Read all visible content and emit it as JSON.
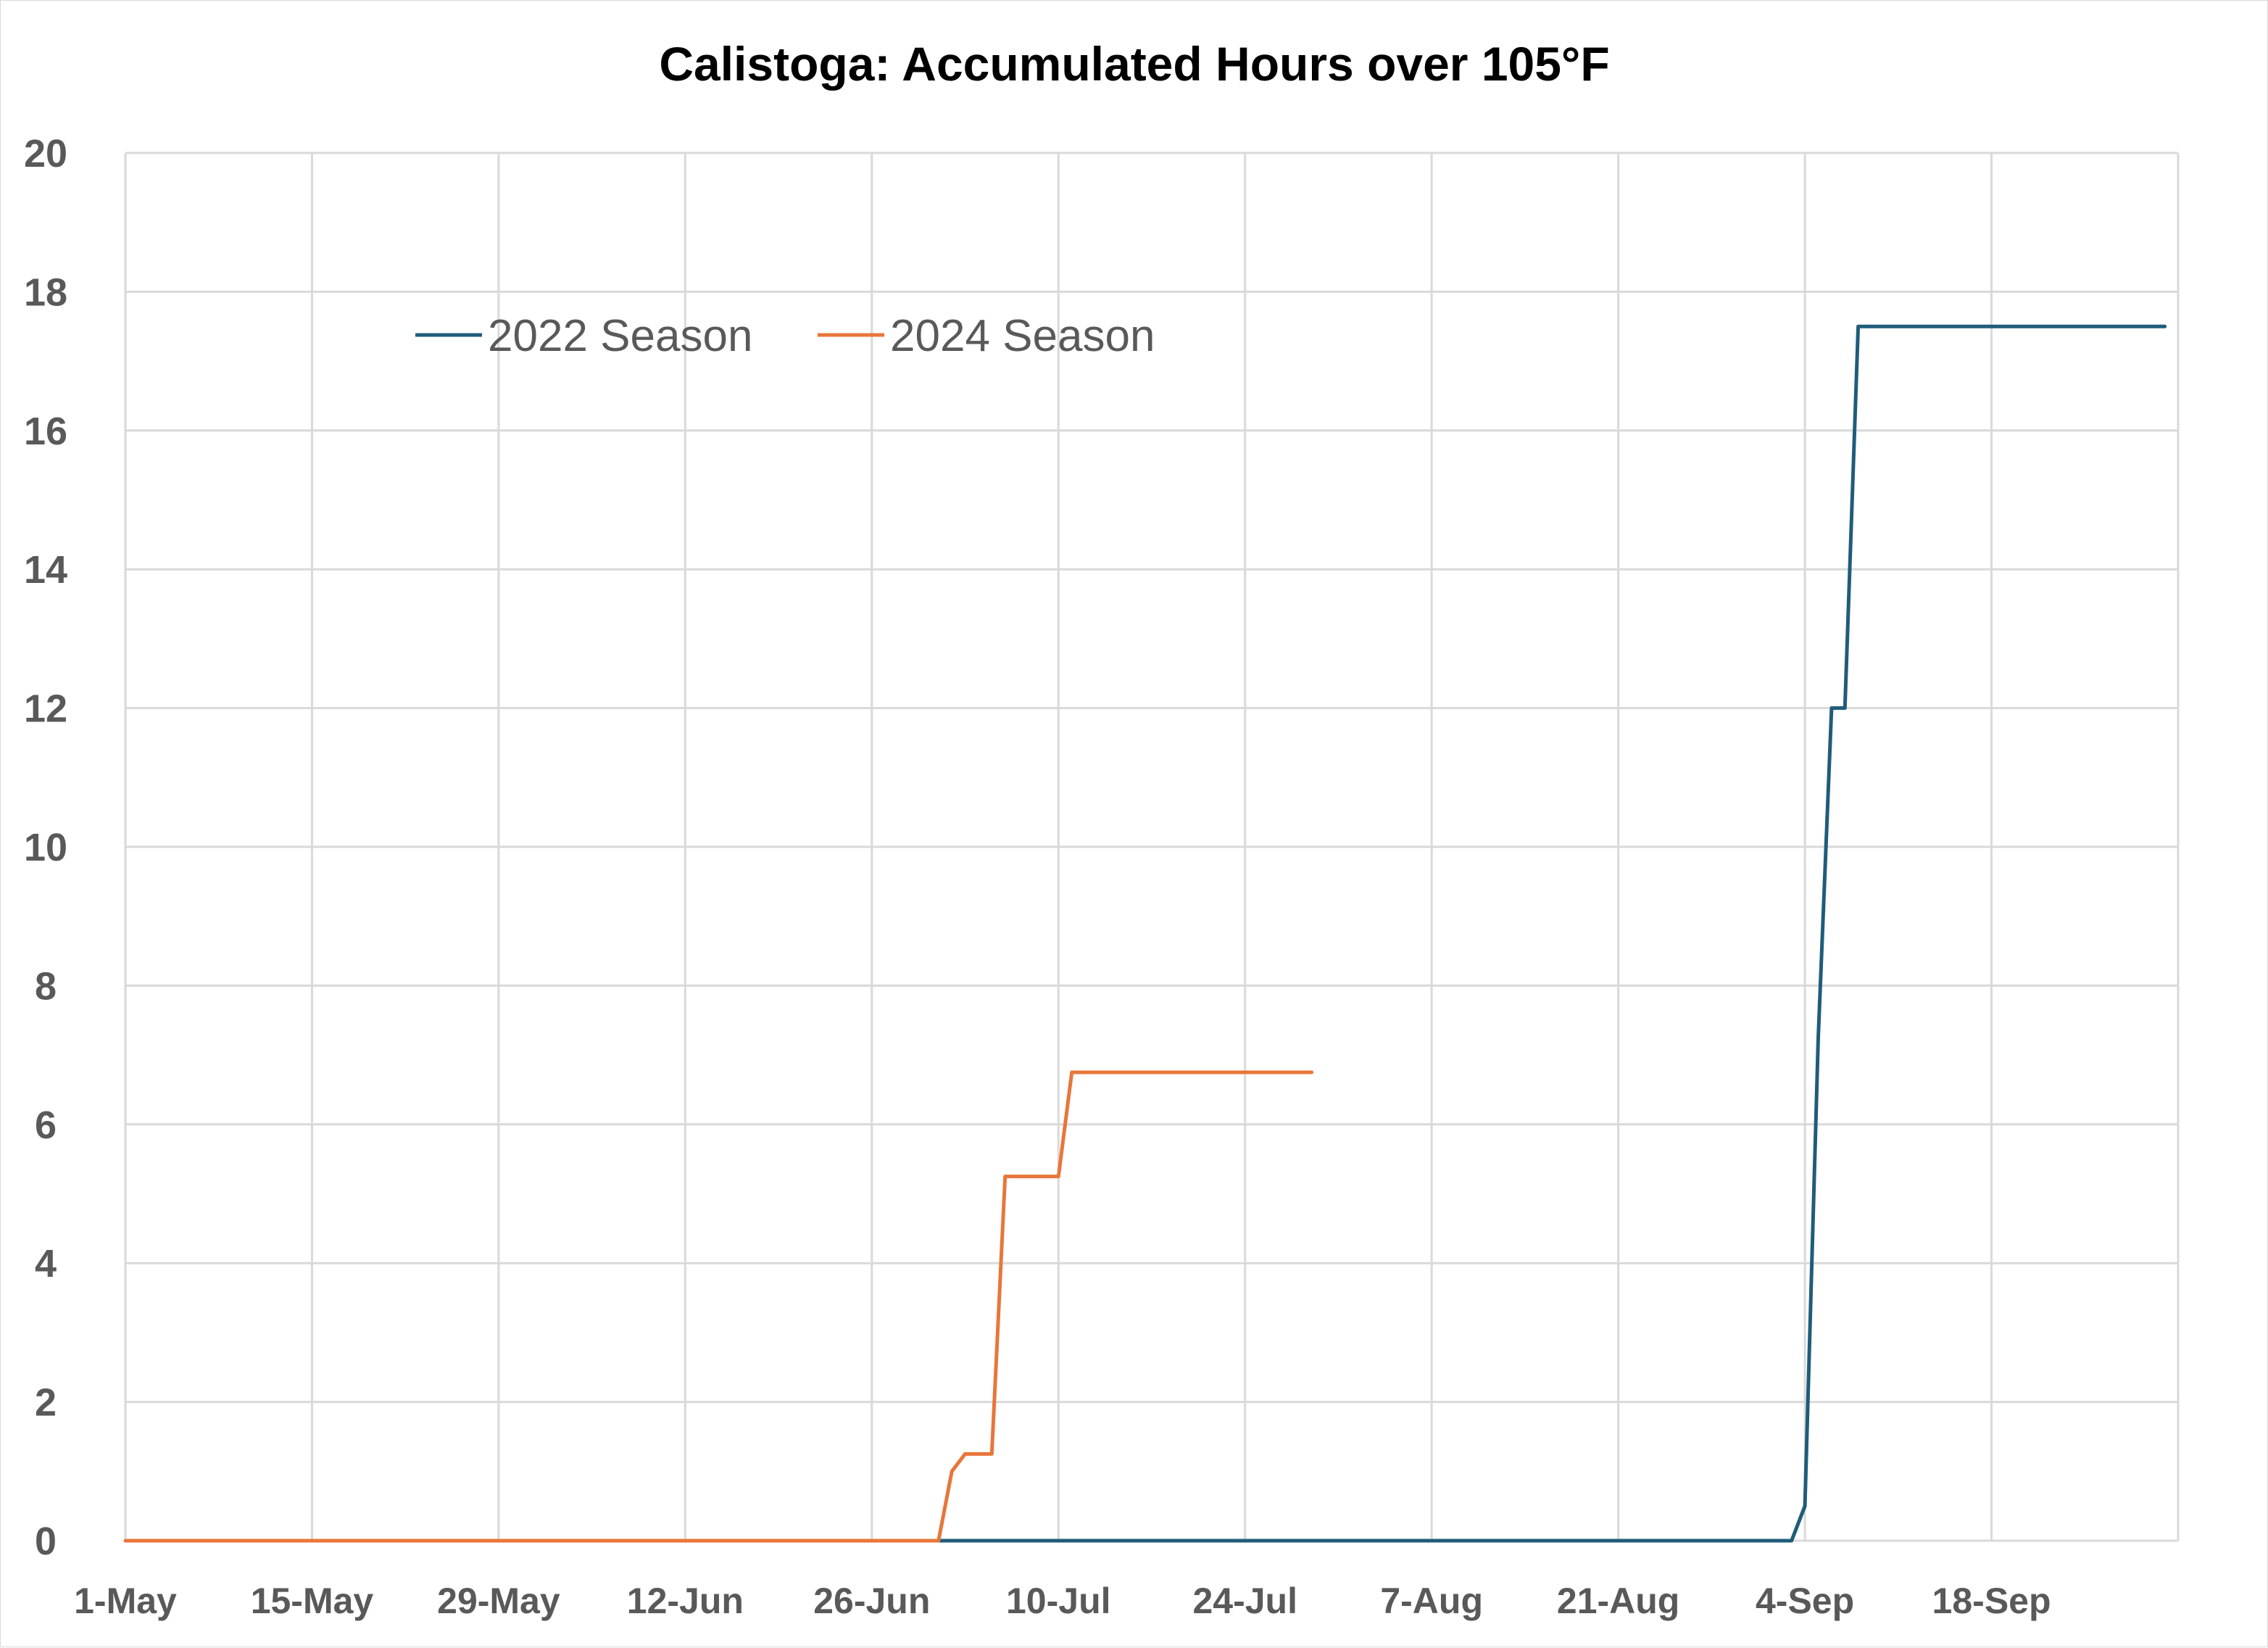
{
  "chart_data": {
    "type": "line",
    "title": "Calistoga: Accumulated Hours over 105°F",
    "xlabel": "",
    "ylabel": "",
    "x_axis": {
      "min": "1-May",
      "max": "2-Oct",
      "ticks": [
        "1-May",
        "15-May",
        "29-May",
        "12-Jun",
        "26-Jun",
        "10-Jul",
        "24-Jul",
        "7-Aug",
        "21-Aug",
        "4-Sep",
        "18-Sep"
      ]
    },
    "ylim": [
      0,
      20
    ],
    "yticks": [
      0,
      2,
      4,
      6,
      8,
      10,
      12,
      14,
      16,
      18,
      20
    ],
    "grid": true,
    "legend_position": "top-left (inside plot)",
    "series": [
      {
        "name": "2022 Season",
        "color": "#1f5c7a",
        "points": [
          [
            "1-Jul",
            0
          ],
          [
            "3-Sep",
            0
          ],
          [
            "4-Sep",
            0.5
          ],
          [
            "5-Sep",
            7.25
          ],
          [
            "6-Sep",
            12
          ],
          [
            "7-Sep",
            12
          ],
          [
            "8-Sep",
            17.5
          ],
          [
            "1-Oct",
            17.5
          ]
        ]
      },
      {
        "name": "2024 Season",
        "color": "#e8763a",
        "points": [
          [
            "1-May",
            0
          ],
          [
            "1-Jul",
            0
          ],
          [
            "2-Jul",
            1
          ],
          [
            "3-Jul",
            1.25
          ],
          [
            "5-Jul",
            1.25
          ],
          [
            "6-Jul",
            5.25
          ],
          [
            "10-Jul",
            5.25
          ],
          [
            "11-Jul",
            6.75
          ],
          [
            "29-Jul",
            6.75
          ]
        ]
      }
    ]
  }
}
